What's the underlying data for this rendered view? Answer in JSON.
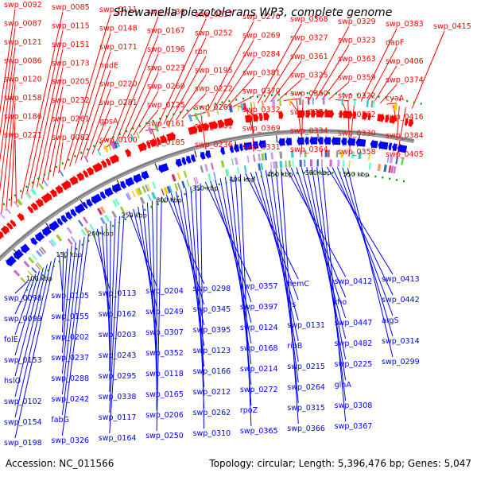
{
  "title": "Shewanella piezotolerans WP3, complete genome",
  "footer": {
    "accession": "Accession: NC_011566",
    "summary": "Topology: circular; Length: 5,396,476 bp; Genes: 5,047"
  },
  "colors": {
    "forward_strand": "#ff0000",
    "reverse_strand": "#0000ff",
    "backbone": "#808080",
    "ticks": "#009900"
  },
  "tick_labels": [
    "100 kbp",
    "150 kbp",
    "200 kbp",
    "250 kbp",
    "300 kbp",
    "350 kbp",
    "400 kbp",
    "450 kbp",
    "500 kbp",
    "550 kbp"
  ],
  "forward_labels": [
    "swp_0092",
    "swp_0087",
    "swp_0121",
    "swp_0086",
    "swp_0120",
    "swp_0158",
    "swp_0186",
    "swp_0221",
    "swp_0085",
    "swp_0115",
    "swp_0151",
    "swp_0173",
    "swp_0205",
    "swp_0232",
    "swp_0261",
    "swp_0082",
    "swp_0111",
    "swp_0148",
    "swp_0171",
    "nudE",
    "swp_0220",
    "swp_0281",
    "gpsA",
    "swp_0100",
    "swp_0136",
    "swp_0167",
    "swp_0196",
    "swp_0223",
    "swp_0260",
    "swp_0125",
    "swp_0161",
    "swp_0185",
    "swp_0217",
    "swp_0252",
    "rbn",
    "swp_0195",
    "swp_0222",
    "swp_0263",
    "swp_0301",
    "swp_0236",
    "swp_0270",
    "swp_0269",
    "swp_0284",
    "swp_0381",
    "swp_0370",
    "swp_0332",
    "swp_0369",
    "swp_0331",
    "swp_0368",
    "swp_0327",
    "swp_0361",
    "swp_0325",
    "swp_0360",
    "swp_0324",
    "swp_0334",
    "swp_0364",
    "swp_0329",
    "swp_0323",
    "swp_0363",
    "swp_0359",
    "swp_0322",
    "swp_0362",
    "swp_0330",
    "swp_0358",
    "swp_0383",
    "dapF",
    "swp_0406",
    "swp_0374",
    "cyaA",
    "swp_0416",
    "swp_0384",
    "swp_0405",
    "swp_0415"
  ],
  "reverse_labels": [
    "swp_0098",
    "swp_0099",
    "folE",
    "swp_0153",
    "hslO",
    "swp_0102",
    "swp_0154",
    "swp_0198",
    "swp_0105",
    "swp_0155",
    "swp_0202",
    "swp_0237",
    "swp_0288",
    "swp_0242",
    "fabG",
    "swp_0326",
    "swp_0113",
    "swp_0162",
    "swp_0203",
    "swp_0243",
    "swp_0295",
    "swp_0338",
    "swp_0117",
    "swp_0164",
    "swp_0204",
    "swp_0249",
    "swp_0307",
    "swp_0352",
    "swp_0118",
    "swp_0165",
    "swp_0206",
    "swp_0250",
    "swp_0298",
    "swp_0345",
    "swp_0395",
    "swp_0123",
    "swp_0166",
    "swp_0212",
    "swp_0262",
    "swp_0310",
    "swp_0357",
    "swp_0397",
    "swp_0124",
    "swp_0168",
    "swp_0214",
    "swp_0272",
    "rpoZ",
    "swp_0365",
    "hemC",
    "fis",
    "swp_0131",
    "ribB",
    "swp_0215",
    "swp_0264",
    "swp_0315",
    "swp_0366",
    "swp_0412",
    "rho",
    "swp_0447",
    "swp_0482",
    "swp_0225",
    "glnA",
    "swp_0308",
    "swp_0367",
    "swp_0413",
    "swp_0442",
    "argS",
    "swp_0314",
    "swp_0299"
  ]
}
